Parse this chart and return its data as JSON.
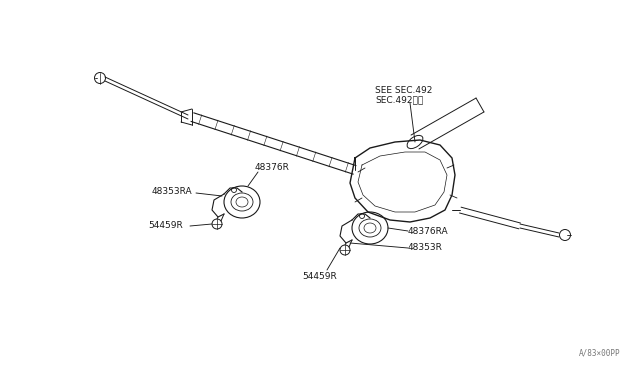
{
  "bg_color": "#ffffff",
  "line_color": "#1a1a1a",
  "text_color": "#1a1a1a",
  "fig_width": 6.4,
  "fig_height": 3.72,
  "dpi": 100,
  "labels": {
    "see_sec": "SEE SEC.492",
    "sec_jp": "SEC.492参図",
    "label_48376R": "48376R",
    "label_48353RA": "48353RA",
    "label_54459R_left": "54459R",
    "label_48376RA": "48376RA",
    "label_48353R": "48353R",
    "label_54459R_bottom": "54459R",
    "watermark": "A/83×00PP"
  },
  "font_size_labels": 6.5,
  "font_size_watermark": 5.5
}
